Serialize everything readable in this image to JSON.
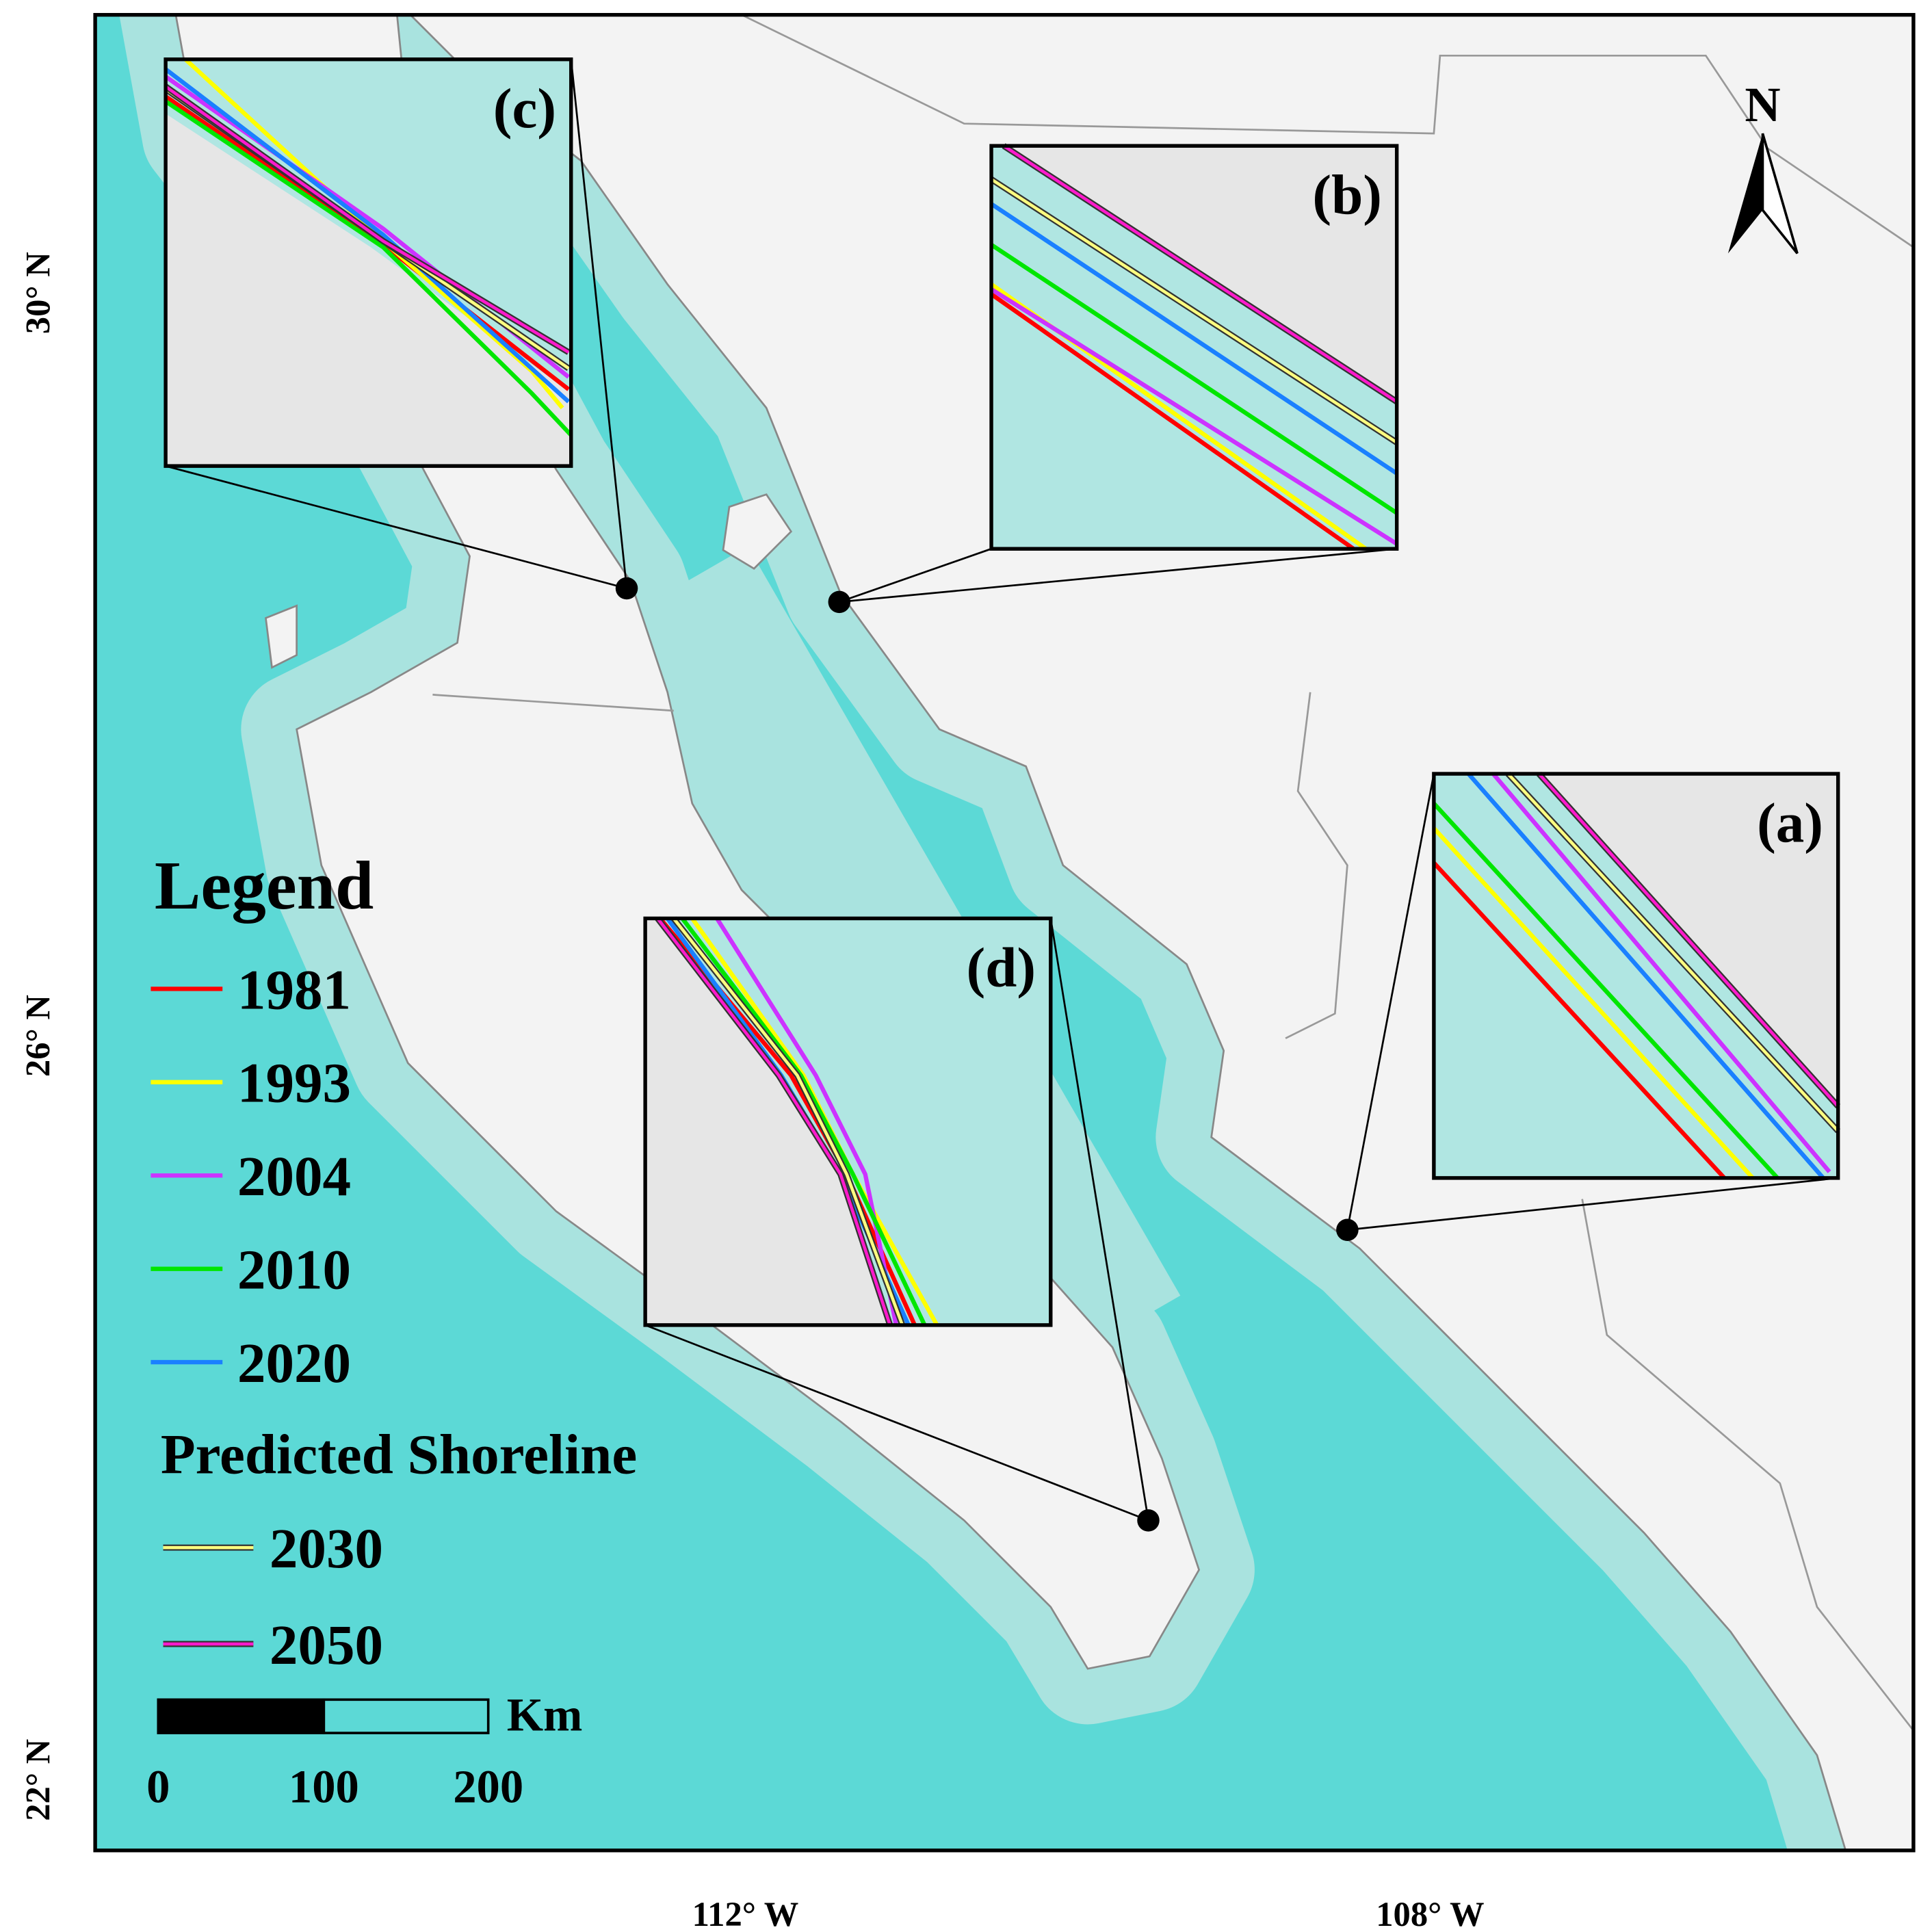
{
  "map": {
    "north": "N",
    "latitude_labels": [
      "30° N",
      "26° N",
      "22° N"
    ],
    "longitude_labels": [
      "112° W",
      "108° W"
    ],
    "insets": [
      {
        "label": "(c)"
      },
      {
        "label": "(b)"
      },
      {
        "label": "(a)"
      },
      {
        "label": "(d)"
      }
    ],
    "legend": {
      "title": "Legend",
      "observed": [
        {
          "name": "1981",
          "color": "#ff0000"
        },
        {
          "name": "1993",
          "color": "#ffff00"
        },
        {
          "name": "2004",
          "color": "#cc33ff"
        },
        {
          "name": "2010",
          "color": "#00e600"
        },
        {
          "name": "2020",
          "color": "#1a80ff"
        }
      ],
      "predicted_title": "Predicted Shoreline",
      "predicted": [
        {
          "name": "2030",
          "color": "#ffff80"
        },
        {
          "name": "2050",
          "color": "#ff1acc"
        }
      ]
    },
    "scale_bar": {
      "unit": "Km",
      "labels": [
        "0",
        "100",
        "200"
      ]
    }
  }
}
